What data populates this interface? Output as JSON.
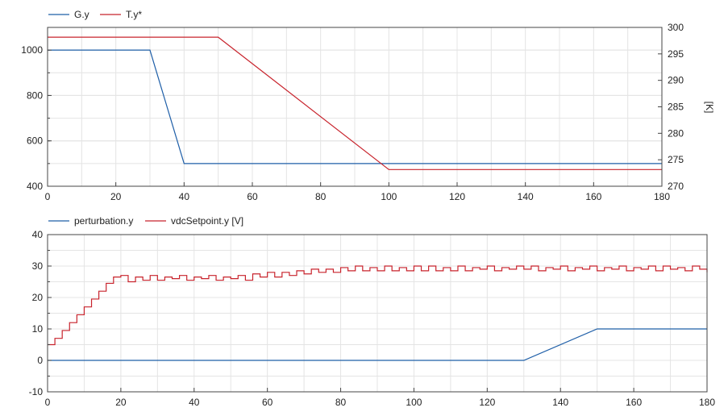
{
  "chart_data": [
    {
      "type": "line",
      "xlim": [
        0,
        180
      ],
      "ylim": [
        400,
        1100
      ],
      "y2lim": [
        270,
        300
      ],
      "xticks": [
        0,
        20,
        40,
        60,
        80,
        100,
        120,
        140,
        160,
        180
      ],
      "yticks": [
        400,
        600,
        800,
        1000
      ],
      "y2ticks": [
        270,
        275,
        280,
        285,
        290,
        295,
        300
      ],
      "y2label": "[K]",
      "legend_position": "top-left",
      "grid": true,
      "series": [
        {
          "name": "G.y",
          "axis": "left",
          "color": "#1f5fa8",
          "x": [
            0,
            30,
            40,
            180
          ],
          "y": [
            1000,
            1000,
            500,
            500
          ]
        },
        {
          "name": "T.y*",
          "axis": "right",
          "color": "#c8232c",
          "x": [
            0,
            50,
            100,
            180
          ],
          "y": [
            298.15,
            298.15,
            273.15,
            273.15
          ]
        }
      ]
    },
    {
      "type": "line",
      "xlim": [
        0,
        180
      ],
      "ylim": [
        -10,
        40
      ],
      "xticks": [
        0,
        20,
        40,
        60,
        80,
        100,
        120,
        140,
        160,
        180
      ],
      "yticks": [
        -10,
        0,
        10,
        20,
        30,
        40
      ],
      "legend_position": "top-left",
      "grid": true,
      "series": [
        {
          "name": "perturbation.y",
          "color": "#1f5fa8",
          "x": [
            0,
            130,
            150,
            180
          ],
          "y": [
            0,
            0,
            10,
            10
          ]
        },
        {
          "name": "vdcSetpoint.y [V]",
          "color": "#c8232c",
          "step": true,
          "x": [
            0,
            2,
            4,
            6,
            8,
            10,
            12,
            14,
            16,
            18,
            20,
            22,
            24,
            26,
            28,
            30,
            32,
            34,
            36,
            38,
            40,
            42,
            44,
            46,
            48,
            50,
            52,
            54,
            56,
            58,
            60,
            62,
            64,
            66,
            68,
            70,
            72,
            74,
            76,
            78,
            80,
            82,
            84,
            86,
            88,
            90,
            92,
            94,
            96,
            98,
            100,
            102,
            104,
            106,
            108,
            110,
            112,
            114,
            116,
            118,
            120,
            122,
            124,
            126,
            128,
            130,
            132,
            134,
            136,
            138,
            140,
            142,
            144,
            146,
            148,
            150,
            152,
            154,
            156,
            158,
            160,
            162,
            164,
            166,
            168,
            170,
            172,
            174,
            176,
            178,
            180
          ],
          "y": [
            5,
            7,
            9.5,
            12,
            14.5,
            17,
            19.5,
            22,
            24.5,
            26.5,
            27,
            25,
            26.5,
            25.5,
            27,
            25.5,
            26.5,
            26,
            27,
            25.5,
            26.5,
            26,
            27,
            25.5,
            26.5,
            26,
            27,
            25.5,
            27.5,
            26.5,
            28,
            26.5,
            28,
            27,
            28.5,
            27.5,
            29,
            28,
            29,
            28,
            29.5,
            28.5,
            30,
            28.5,
            29.5,
            28.5,
            30,
            28.5,
            29.5,
            28.5,
            30,
            28.5,
            30,
            28.5,
            29.5,
            28.5,
            30,
            28.5,
            29.5,
            29,
            30,
            28.5,
            29.5,
            29,
            30,
            29,
            30,
            28.5,
            29.5,
            29,
            30,
            28.5,
            29.5,
            29,
            30,
            28.5,
            29.5,
            29,
            30,
            28.5,
            29.5,
            29,
            30,
            28.5,
            30,
            29,
            29.5,
            28.5,
            30,
            29,
            28
          ]
        }
      ]
    }
  ]
}
